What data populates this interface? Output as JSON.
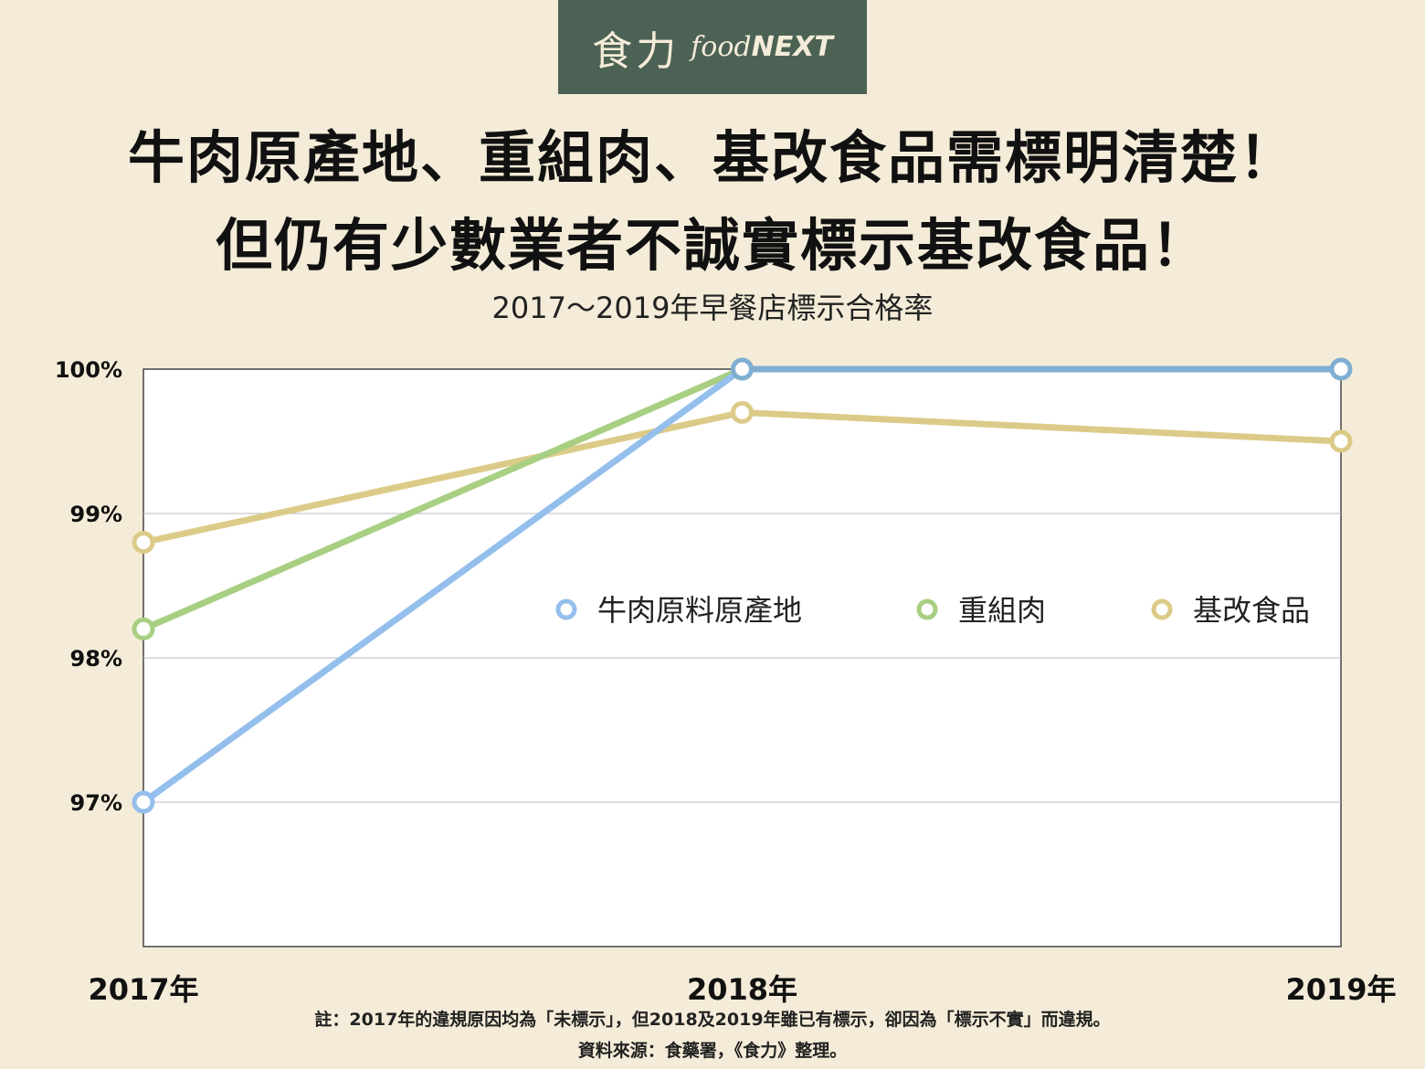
{
  "logo": {
    "cn": "食力",
    "en_prefix": "food",
    "en_suffix": "NEXT"
  },
  "title_line1": "牛肉原產地、重組肉、基改食品需標明清楚！",
  "title_line2": "但仍有少數業者不誠實標示基改食品！",
  "note": "註：2017年的違規原因均為「未標示」，但2018及2019年雖已有標示，卻因為「標示不實」而違規。",
  "source": "資料來源：食藥署，《食力》整理。",
  "chart_data": {
    "type": "line",
    "title": "2017～2019年早餐店標示合格率",
    "categories": [
      "2017年",
      "2018年",
      "2019年"
    ],
    "y_ticks": [
      "100%",
      "99%",
      "98%",
      "97%"
    ],
    "y_tick_values": [
      100,
      99,
      98,
      97
    ],
    "ylim": [
      96,
      100
    ],
    "grid": true,
    "legend_position": "center-right",
    "series": [
      {
        "name": "牛肉原料原產地",
        "color": "#94bfed",
        "values": [
          97.0,
          100.0,
          100.0
        ]
      },
      {
        "name": "重組肉",
        "color": "#a8cf82",
        "values": [
          98.2,
          100.0,
          null
        ]
      },
      {
        "name": "基改食品",
        "color": "#dccb88",
        "values": [
          98.8,
          99.7,
          99.5
        ]
      }
    ],
    "overlap_color": "#7faed2"
  }
}
